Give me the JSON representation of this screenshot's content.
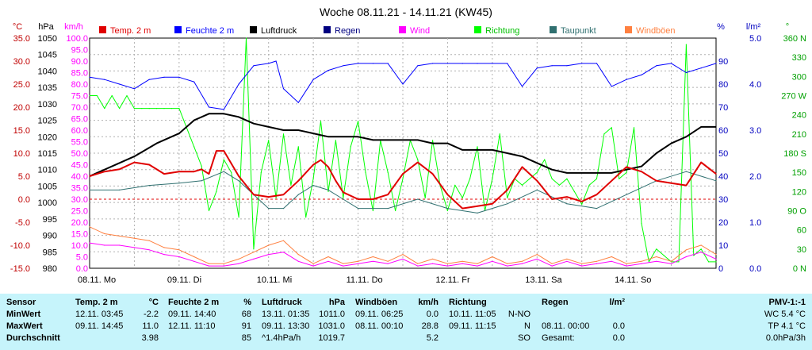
{
  "title": "Woche 08.11.21 - 14.11.21 (KW45)",
  "chart_data": {
    "type": "line",
    "title": "Woche 08.11.21 - 14.11.21 (KW45)",
    "axes": {
      "temp": {
        "unit": "°C",
        "color": "#c00000",
        "ticks": [
          "35.0",
          "30.0",
          "25.0",
          "20.0",
          "15.0",
          "10.0",
          "5.0",
          "0.0",
          "-5.0",
          "-10.0",
          "-15.0"
        ],
        "range": [
          -15,
          35
        ]
      },
      "pressure": {
        "unit": "hPa",
        "color": "#000000",
        "ticks": [
          "1050",
          "1045",
          "1040",
          "1035",
          "1030",
          "1025",
          "1020",
          "1015",
          "1010",
          "1005",
          "1000",
          "995",
          "990",
          "985",
          "980"
        ],
        "range": [
          980,
          1050
        ]
      },
      "wind": {
        "unit": "km/h",
        "color": "#ff00ff",
        "ticks": [
          "100.0",
          "95.0",
          "90.0",
          "85.0",
          "80.0",
          "75.0",
          "70.0",
          "65.0",
          "60.0",
          "55.0",
          "50.0",
          "45.0",
          "40.0",
          "35.0",
          "30.0",
          "25.0",
          "20.0",
          "15.0",
          "10.0",
          "5.0",
          "0.0"
        ],
        "range": [
          0,
          100
        ]
      },
      "humidity": {
        "unit": "%",
        "color": "#0000c0",
        "ticks": [
          "90",
          "80",
          "70",
          "60",
          "50",
          "40",
          "30",
          "20",
          "10",
          "0"
        ],
        "range": [
          0,
          100
        ]
      },
      "rain": {
        "unit": "l/m²",
        "color": "#0000c0",
        "ticks": [
          "5.0",
          "4.0",
          "3.0",
          "2.0",
          "1.0",
          "0.0"
        ],
        "range": [
          0,
          5
        ]
      },
      "direction": {
        "unit": "°",
        "color": "#00a000",
        "ticks": [
          "360 N",
          "330",
          "300",
          "270 W",
          "240",
          "210",
          "180 S",
          "150",
          "120",
          "90 O",
          "60",
          "30",
          "0 N"
        ],
        "range": [
          0,
          360
        ]
      }
    },
    "x_labels": [
      "08.11. Mo",
      "09.11. Di",
      "10.11. Mi",
      "11.11. Do",
      "12.11. Fr",
      "13.11. Sa",
      "14.11. So"
    ],
    "legend": [
      {
        "name": "Temp. 2 m",
        "color": "#e00000"
      },
      {
        "name": "Feuchte 2 m",
        "color": "#0000ff"
      },
      {
        "name": "Luftdruck",
        "color": "#000000"
      },
      {
        "name": "Regen",
        "color": "#000080"
      },
      {
        "name": "Wind",
        "color": "#ff00ff"
      },
      {
        "name": "Richtung",
        "color": "#00ff00"
      },
      {
        "name": "Taupunkt",
        "color": "#307070"
      },
      {
        "name": "Windböen",
        "color": "#ff8040"
      }
    ],
    "series": [
      {
        "name": "Temp. 2 m",
        "axis": "temp",
        "color": "#e00000",
        "width": 2,
        "x": [
          0,
          4,
          8,
          12,
          16,
          20,
          24,
          28,
          30,
          32,
          34,
          36,
          40,
          44,
          48,
          52,
          56,
          60,
          62,
          64,
          66,
          68,
          72,
          76,
          80,
          84,
          88,
          92,
          96,
          100,
          104,
          108,
          112,
          116,
          120,
          124,
          128,
          132,
          136,
          140,
          144,
          148,
          152,
          156,
          160,
          164,
          168
        ],
        "values": [
          5,
          6,
          6.5,
          8,
          7.5,
          5.5,
          6,
          6,
          6.5,
          5.5,
          10.5,
          10.5,
          5,
          1,
          0.5,
          1,
          4,
          7.5,
          8.5,
          7,
          4,
          1.5,
          0,
          0,
          1,
          5.5,
          8,
          5.5,
          1,
          -2,
          -1.5,
          -1,
          2,
          7,
          4,
          0,
          0.5,
          -0.5,
          1,
          4,
          7,
          6,
          4,
          3.5,
          3,
          8,
          5.5
        ]
      },
      {
        "name": "Feuchte 2 m",
        "axis": "humidity",
        "color": "#0000ff",
        "width": 1,
        "x": [
          0,
          4,
          8,
          12,
          16,
          20,
          24,
          28,
          32,
          36,
          40,
          44,
          48,
          50,
          52,
          56,
          60,
          64,
          68,
          72,
          76,
          80,
          84,
          88,
          92,
          96,
          100,
          104,
          108,
          112,
          116,
          120,
          124,
          128,
          132,
          136,
          140,
          144,
          148,
          152,
          156,
          160,
          164,
          168
        ],
        "values": [
          83,
          82,
          80,
          78,
          82,
          83,
          83,
          81,
          70,
          69,
          80,
          88,
          89,
          90,
          78,
          72,
          82,
          86,
          88,
          89,
          89,
          89,
          80,
          88,
          89,
          89,
          89,
          89,
          89,
          89,
          79,
          87,
          88,
          88,
          89,
          89,
          79,
          82,
          84,
          88,
          89,
          85,
          87,
          89
        ]
      },
      {
        "name": "Luftdruck",
        "axis": "pressure",
        "color": "#000000",
        "width": 2,
        "x": [
          0,
          6,
          12,
          18,
          24,
          28,
          32,
          36,
          40,
          44,
          48,
          52,
          56,
          60,
          64,
          68,
          72,
          76,
          80,
          84,
          88,
          92,
          96,
          100,
          104,
          108,
          112,
          116,
          120,
          124,
          128,
          132,
          136,
          140,
          144,
          148,
          152,
          156,
          160,
          164,
          168
        ],
        "values": [
          1008,
          1011,
          1014,
          1018,
          1021,
          1025,
          1027,
          1027,
          1026,
          1024,
          1023,
          1022,
          1022,
          1021,
          1020,
          1020,
          1020,
          1019,
          1019,
          1019,
          1019,
          1018,
          1018,
          1016,
          1016,
          1016,
          1015,
          1014,
          1012,
          1010,
          1009,
          1009,
          1009,
          1009,
          1010,
          1011,
          1015,
          1018,
          1020,
          1023,
          1023
        ]
      },
      {
        "name": "Taupunkt",
        "axis": "temp",
        "color": "#307070",
        "width": 1,
        "x": [
          0,
          8,
          16,
          24,
          30,
          36,
          40,
          44,
          48,
          52,
          56,
          60,
          64,
          68,
          72,
          80,
          88,
          96,
          104,
          112,
          120,
          128,
          136,
          144,
          152,
          160,
          168
        ],
        "values": [
          2,
          2,
          3,
          3.5,
          4,
          6,
          4,
          1,
          -2,
          -2,
          1,
          3,
          2,
          0,
          -2,
          -2,
          0,
          -2,
          -3,
          -1,
          2,
          -1,
          -2,
          1,
          4,
          6,
          4
        ]
      },
      {
        "name": "Richtung",
        "axis": "direction",
        "color": "#00ff00",
        "width": 1,
        "x": [
          0,
          2,
          4,
          6,
          8,
          10,
          12,
          14,
          16,
          18,
          20,
          22,
          24,
          26,
          28,
          30,
          32,
          34,
          36,
          38,
          40,
          42,
          44,
          46,
          48,
          50,
          52,
          54,
          56,
          58,
          60,
          62,
          64,
          66,
          68,
          70,
          72,
          74,
          76,
          78,
          80,
          82,
          84,
          86,
          88,
          90,
          92,
          94,
          96,
          98,
          100,
          102,
          104,
          106,
          108,
          110,
          112,
          114,
          116,
          118,
          120,
          122,
          124,
          126,
          128,
          130,
          132,
          134,
          136,
          138,
          140,
          142,
          144,
          146,
          148,
          150,
          152,
          154,
          156,
          158,
          160,
          162,
          164,
          166,
          168
        ],
        "values": [
          270,
          270,
          250,
          270,
          250,
          270,
          250,
          250,
          250,
          250,
          250,
          250,
          250,
          220,
          190,
          160,
          90,
          120,
          170,
          150,
          80,
          360,
          30,
          150,
          200,
          110,
          210,
          130,
          190,
          80,
          140,
          230,
          120,
          200,
          110,
          190,
          230,
          150,
          90,
          200,
          150,
          90,
          140,
          200,
          170,
          110,
          200,
          130,
          90,
          130,
          110,
          140,
          190,
          90,
          140,
          210,
          110,
          140,
          130,
          140,
          150,
          170,
          140,
          130,
          140,
          120,
          100,
          130,
          140,
          210,
          220,
          140,
          150,
          220,
          70,
          10,
          30,
          20,
          10,
          10,
          350,
          20,
          30,
          10,
          10
        ]
      },
      {
        "name": "Wind",
        "axis": "wind",
        "color": "#ff00ff",
        "width": 1,
        "x": [
          0,
          4,
          8,
          12,
          16,
          20,
          24,
          28,
          32,
          36,
          40,
          44,
          48,
          52,
          56,
          60,
          64,
          68,
          72,
          76,
          80,
          84,
          88,
          92,
          96,
          100,
          104,
          108,
          112,
          116,
          120,
          124,
          128,
          132,
          136,
          140,
          144,
          148,
          152,
          156,
          160,
          164,
          168
        ],
        "values": [
          11,
          10,
          10,
          9,
          8,
          6,
          5,
          3,
          1,
          1,
          2,
          4,
          6,
          7,
          3,
          1,
          3,
          1,
          2,
          3,
          2,
          4,
          1,
          2,
          1,
          2,
          1,
          3,
          1,
          2,
          4,
          1,
          3,
          1,
          2,
          3,
          1,
          2,
          3,
          2,
          5,
          7,
          4
        ]
      },
      {
        "name": "Windböen",
        "axis": "wind",
        "color": "#ff8040",
        "width": 1,
        "x": [
          0,
          4,
          8,
          12,
          16,
          20,
          24,
          28,
          32,
          36,
          40,
          44,
          48,
          52,
          56,
          60,
          64,
          68,
          72,
          76,
          80,
          84,
          88,
          92,
          96,
          100,
          104,
          108,
          112,
          116,
          120,
          124,
          128,
          132,
          136,
          140,
          144,
          148,
          152,
          156,
          160,
          164,
          168
        ],
        "values": [
          18,
          15,
          14,
          13,
          12,
          9,
          8,
          5,
          2,
          2,
          4,
          7,
          10,
          12,
          6,
          2,
          5,
          2,
          3,
          5,
          3,
          6,
          2,
          4,
          2,
          3,
          2,
          5,
          2,
          3,
          6,
          2,
          4,
          2,
          3,
          5,
          2,
          3,
          5,
          3,
          8,
          10,
          6
        ]
      }
    ],
    "grid": true
  },
  "stats": {
    "labels": {
      "sensor": "Sensor",
      "min": "MinWert",
      "max": "MaxWert",
      "avg": "Durchschnitt"
    },
    "temp": {
      "title": "Temp. 2 m",
      "unit": "°C",
      "min_time": "12.11. 03:45",
      "min_val": "-2.2",
      "max_time": "09.11. 14:45",
      "max_val": "11.0",
      "avg_val": "3.98"
    },
    "humidity": {
      "title": "Feuchte 2 m",
      "unit": "%",
      "min_time": "09.11. 14:40",
      "min_val": "68",
      "max_time": "12.11. 11:10",
      "max_val": "91",
      "avg_val": "85"
    },
    "pressure": {
      "title": "Luftdruck",
      "unit": "hPa",
      "min_time": "13.11. 01:35",
      "min_val": "1011.0",
      "max_time": "09.11. 13:30",
      "max_val": "1031.0",
      "avg_time": "^1.4hPa/h",
      "avg_val": "1019.7"
    },
    "gusts": {
      "title": "Windböen",
      "unit": "km/h",
      "min_time": "09.11. 06:25",
      "min_val": "0.0",
      "max_time": "08.11. 00:10",
      "max_val": "28.8",
      "avg_val": "5.2"
    },
    "direction": {
      "title": "Richtung",
      "min_time": "10.11. 11:05",
      "min_val": "N-NO",
      "max_time": "09.11. 11:15",
      "max_val": "N",
      "avg_val": "SO"
    },
    "rain": {
      "title": "Regen",
      "unit": "l/m²",
      "max_time": "08.11. 00:00",
      "max_val": "0.0",
      "avg_time": "Gesamt:",
      "avg_val": "0.0"
    },
    "pmv": {
      "title": "PMV-1:-1",
      "l1": "WC 5.4 °C",
      "l2": "TP 4.1 °C",
      "l3": "0.0hPa/3h"
    }
  }
}
